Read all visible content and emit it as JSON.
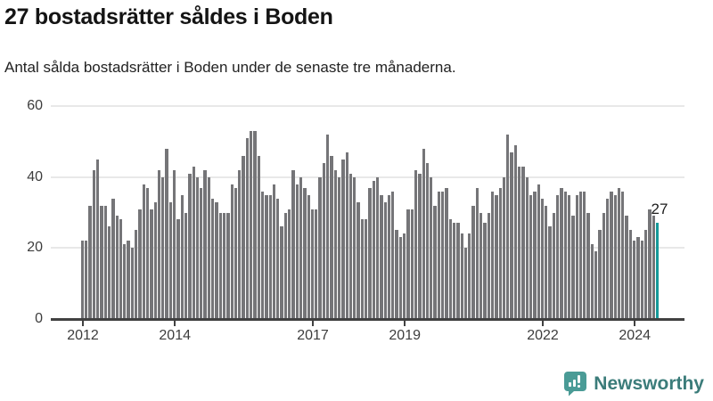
{
  "chart_data": {
    "type": "bar",
    "title": "27 bostadsrätter såldes i Boden",
    "subtitle": "Antal sålda bostadsrätter i Boden under de senaste tre månaderna.",
    "x_start_month": "2012-01",
    "x_interval_months": 1,
    "values": [
      22,
      22,
      32,
      42,
      45,
      32,
      32,
      26,
      34,
      29,
      28,
      21,
      22,
      20,
      25,
      31,
      38,
      37,
      31,
      33,
      42,
      40,
      48,
      33,
      42,
      28,
      35,
      30,
      41,
      43,
      40,
      37,
      42,
      40,
      34,
      33,
      30,
      30,
      30,
      38,
      37,
      42,
      46,
      51,
      53,
      53,
      46,
      36,
      35,
      35,
      38,
      34,
      26,
      30,
      31,
      42,
      38,
      40,
      37,
      35,
      31,
      31,
      40,
      44,
      52,
      46,
      42,
      40,
      45,
      47,
      41,
      40,
      33,
      28,
      28,
      37,
      39,
      40,
      35,
      33,
      35,
      36,
      25,
      23,
      24,
      31,
      31,
      42,
      41,
      48,
      44,
      40,
      32,
      36,
      36,
      37,
      28,
      27,
      27,
      24,
      20,
      24,
      32,
      37,
      30,
      27,
      30,
      36,
      35,
      37,
      40,
      52,
      47,
      49,
      43,
      43,
      40,
      35,
      36,
      38,
      34,
      32,
      26,
      30,
      35,
      37,
      36,
      35,
      29,
      35,
      36,
      36,
      30,
      21,
      19,
      25,
      30,
      34,
      36,
      35,
      37,
      36,
      29,
      25,
      22,
      23,
      22,
      25,
      31,
      29,
      27
    ],
    "ylim": [
      0,
      60
    ],
    "yticks": [
      0,
      20,
      40,
      60
    ],
    "xticks": [
      {
        "label": "2012",
        "index": 0
      },
      {
        "label": "2014",
        "index": 24
      },
      {
        "label": "2017",
        "index": 60
      },
      {
        "label": "2019",
        "index": 84
      },
      {
        "label": "2022",
        "index": 120
      },
      {
        "label": "2024",
        "index": 144
      }
    ],
    "grid": "horizontal",
    "legend": "none",
    "bar_color": "#757578",
    "highlight": {
      "index": 150,
      "value": 27,
      "label": "27",
      "color": "#169a9a"
    },
    "gridline_color": "#e8e8e8",
    "axis_color": "#414141",
    "tick_label_color": "#3d3d3d"
  },
  "footer": {
    "brand": "Newsworthy",
    "brand_color": "#3b7c7a",
    "logo_icon": "bar-chart-exclamation-bubble-icon",
    "logo_bg_color": "#4a9b96",
    "logo_glyph_color": "#ffffff"
  }
}
